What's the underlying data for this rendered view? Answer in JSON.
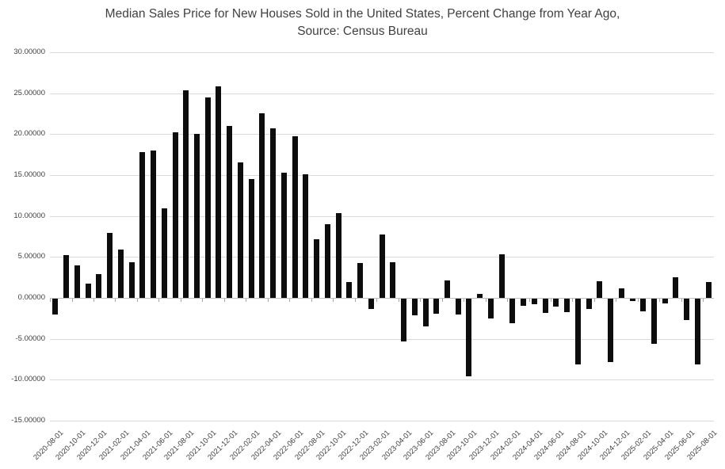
{
  "title": {
    "line1": "Median Sales Price for New Houses Sold in the United States, Percent Change from Year Ago,",
    "line2": "Source: Census Bureau"
  },
  "colors": {
    "bar": "#0d0d0d",
    "gridline": "#d9d9d9",
    "axis_line": "#bfbfbf",
    "tick": "#a6a6a6",
    "label_text": "#404040",
    "title_text": "#404040",
    "background": "#ffffff"
  },
  "chart_data": {
    "type": "bar",
    "title": "Median Sales Price for New Houses Sold in the United States, Percent Change from Year Ago, Source: Census Bureau",
    "xlabel": "",
    "ylabel": "",
    "ylim": [
      -15,
      30
    ],
    "ytick_step": 5,
    "ytick_labels": [
      "30.00000",
      "25.00000",
      "20.00000",
      "15.00000",
      "10.00000",
      "5.00000",
      "0.00000",
      "-5.00000",
      "-10.00000",
      "-15.00000"
    ],
    "xtick_every": 2,
    "grid": true,
    "legend": false,
    "x": [
      "2020-08-01",
      "2020-09-01",
      "2020-10-01",
      "2020-11-01",
      "2020-12-01",
      "2021-01-01",
      "2021-02-01",
      "2021-03-01",
      "2021-04-01",
      "2021-05-01",
      "2021-06-01",
      "2021-07-01",
      "2021-08-01",
      "2021-09-01",
      "2021-10-01",
      "2021-11-01",
      "2021-12-01",
      "2022-01-01",
      "2022-02-01",
      "2022-03-01",
      "2022-04-01",
      "2022-05-01",
      "2022-06-01",
      "2022-07-01",
      "2022-08-01",
      "2022-09-01",
      "2022-10-01",
      "2022-11-01",
      "2022-12-01",
      "2023-01-01",
      "2023-02-01",
      "2023-03-01",
      "2023-04-01",
      "2023-05-01",
      "2023-06-01",
      "2023-07-01",
      "2023-08-01",
      "2023-09-01",
      "2023-10-01",
      "2023-11-01",
      "2023-12-01",
      "2024-01-01",
      "2024-02-01",
      "2024-03-01",
      "2024-04-01",
      "2024-05-01",
      "2024-06-01",
      "2024-07-01",
      "2024-08-01",
      "2024-09-01",
      "2024-10-01",
      "2024-11-01",
      "2024-12-01",
      "2025-01-01",
      "2025-02-01",
      "2025-03-01",
      "2025-04-01",
      "2025-05-01",
      "2025-06-01",
      "2025-07-01",
      "2025-08-01"
    ],
    "values": [
      -1.9,
      5.2,
      4.0,
      1.7,
      2.9,
      7.9,
      5.9,
      4.4,
      17.8,
      18.0,
      10.9,
      20.2,
      25.4,
      20.0,
      24.5,
      25.8,
      21.0,
      16.6,
      14.5,
      22.6,
      20.7,
      15.3,
      19.7,
      15.1,
      7.2,
      9.0,
      10.4,
      1.9,
      4.3,
      -1.3,
      7.7,
      4.4,
      -5.2,
      -2.0,
      -3.4,
      -1.8,
      2.1,
      -1.9,
      -9.5,
      0.5,
      -2.4,
      5.3,
      -3.0,
      -0.9,
      -0.7,
      -1.7,
      -1.0,
      -1.6,
      -8.0,
      -1.3,
      2.0,
      -7.7,
      1.2,
      -0.3,
      -1.5,
      -5.5,
      -0.6,
      2.5,
      -2.6,
      -8.0,
      1.9
    ]
  }
}
